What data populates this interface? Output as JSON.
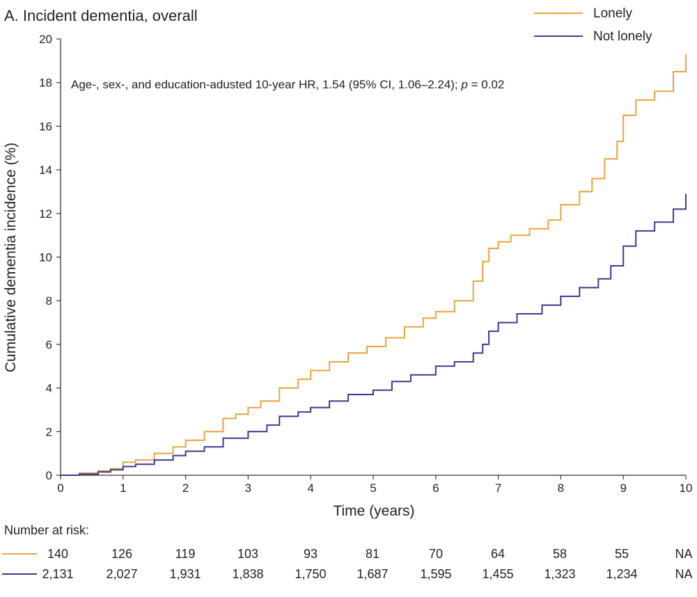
{
  "chart_data": {
    "type": "line",
    "title": "A. Incident dementia, overall",
    "annotation": {
      "prefix": "Age-, sex-, and education-adusted 10-year HR, 1.54 (95% CI, 1.06–2.24); ",
      "p_label": "p",
      "suffix": " = 0.02"
    },
    "xlabel": "Time (years)",
    "ylabel": "Cumulative dementia incidence (%)",
    "xlim": [
      0,
      10
    ],
    "ylim": [
      0,
      20
    ],
    "xticks": [
      0,
      1,
      2,
      3,
      4,
      5,
      6,
      7,
      8,
      9,
      10
    ],
    "yticks": [
      0,
      2,
      4,
      6,
      8,
      10,
      12,
      14,
      16,
      18,
      20
    ],
    "grid": false,
    "legend_position": "top-right",
    "series": [
      {
        "name": "Lonely",
        "color": "#E8A33D",
        "x": [
          0,
          0.3,
          0.6,
          0.8,
          1.0,
          1.2,
          1.5,
          1.8,
          2.0,
          2.3,
          2.6,
          2.8,
          3.0,
          3.2,
          3.5,
          3.8,
          4.0,
          4.3,
          4.6,
          4.9,
          5.2,
          5.5,
          5.8,
          6.0,
          6.3,
          6.6,
          6.75,
          6.85,
          7.0,
          7.2,
          7.5,
          7.8,
          8.0,
          8.3,
          8.5,
          8.7,
          8.9,
          9.0,
          9.2,
          9.5,
          9.8,
          10.0
        ],
        "y": [
          0,
          0.1,
          0.2,
          0.3,
          0.6,
          0.7,
          1.0,
          1.3,
          1.6,
          2.0,
          2.6,
          2.8,
          3.1,
          3.4,
          4.0,
          4.4,
          4.8,
          5.2,
          5.6,
          5.9,
          6.3,
          6.8,
          7.2,
          7.5,
          8.0,
          8.9,
          9.8,
          10.4,
          10.7,
          11.0,
          11.3,
          11.7,
          12.4,
          13.0,
          13.6,
          14.5,
          15.3,
          16.5,
          17.2,
          17.6,
          18.5,
          19.3
        ]
      },
      {
        "name": "Not lonely",
        "color": "#3A3A8C",
        "x": [
          0,
          0.3,
          0.6,
          0.8,
          1.0,
          1.2,
          1.5,
          1.8,
          2.0,
          2.3,
          2.6,
          3.0,
          3.3,
          3.5,
          3.8,
          4.0,
          4.3,
          4.6,
          5.0,
          5.3,
          5.6,
          6.0,
          6.3,
          6.6,
          6.75,
          6.85,
          7.0,
          7.3,
          7.7,
          8.0,
          8.3,
          8.6,
          8.8,
          9.0,
          9.2,
          9.5,
          9.8,
          10.0
        ],
        "y": [
          0,
          0.05,
          0.15,
          0.25,
          0.4,
          0.5,
          0.7,
          0.9,
          1.1,
          1.3,
          1.7,
          2.0,
          2.3,
          2.7,
          2.9,
          3.1,
          3.4,
          3.7,
          3.9,
          4.3,
          4.6,
          5.0,
          5.2,
          5.6,
          6.0,
          6.6,
          7.0,
          7.4,
          7.8,
          8.2,
          8.6,
          9.0,
          9.6,
          10.5,
          11.2,
          11.6,
          12.2,
          12.9
        ]
      }
    ],
    "number_at_risk": {
      "label": "Number at risk:",
      "rows": [
        {
          "series": "Lonely",
          "values": [
            "140",
            "126",
            "119",
            "103",
            "93",
            "81",
            "70",
            "64",
            "58",
            "55",
            "NA"
          ]
        },
        {
          "series": "Not lonely",
          "values": [
            "2,131",
            "2,027",
            "1,931",
            "1,838",
            "1,750",
            "1,687",
            "1,595",
            "1,455",
            "1,323",
            "1,234",
            "NA"
          ]
        }
      ]
    }
  }
}
